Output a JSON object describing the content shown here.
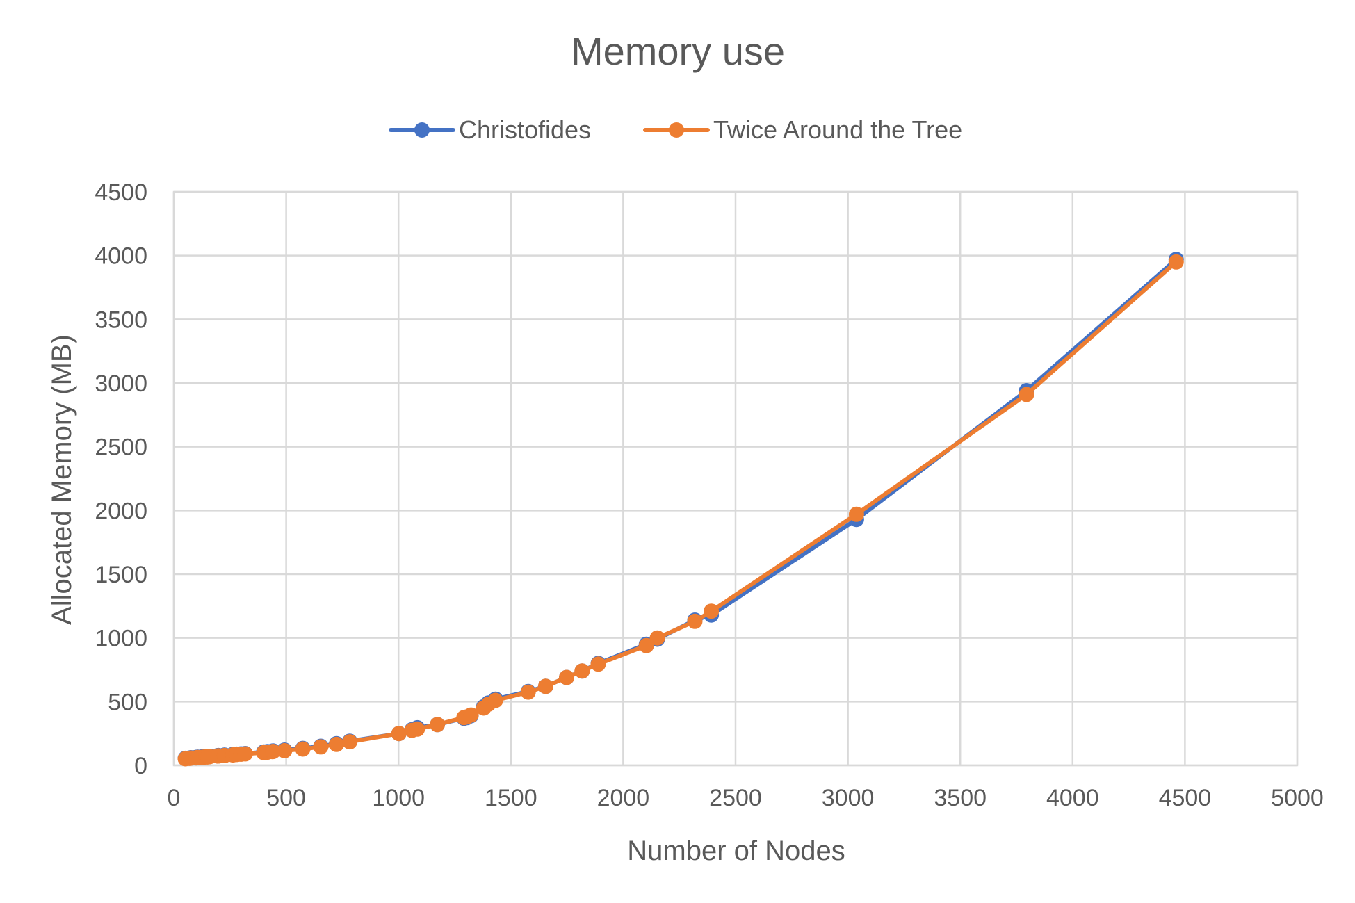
{
  "chart_data": {
    "type": "line",
    "title": "Memory use",
    "xlabel": "Number of Nodes",
    "ylabel": "Allocated Memory (MB)",
    "xlim": [
      0,
      5000
    ],
    "ylim": [
      0,
      4500
    ],
    "xticks": [
      0,
      500,
      1000,
      1500,
      2000,
      2500,
      3000,
      3500,
      4000,
      4500,
      5000
    ],
    "yticks": [
      0,
      500,
      1000,
      1500,
      2000,
      2500,
      3000,
      3500,
      4000,
      4500
    ],
    "grid": true,
    "legend_position": "top",
    "series": [
      {
        "name": "Christofides",
        "color": "#4472C4",
        "x": [
          51,
          70,
          76,
          99,
          101,
          105,
          107,
          124,
          130,
          136,
          144,
          150,
          152,
          159,
          195,
          198,
          200,
          225,
          226,
          262,
          264,
          280,
          299,
          318,
          400,
          417,
          439,
          442,
          493,
          574,
          654,
          724,
          783,
          1002,
          1060,
          1084,
          1173,
          1291,
          1304,
          1323,
          1379,
          1400,
          1432,
          1577,
          1655,
          1748,
          1817,
          1889,
          2103,
          2152,
          2319,
          2392,
          3038,
          3795,
          4461
        ],
        "y": [
          55,
          58,
          60,
          62,
          63,
          64,
          64,
          66,
          67,
          68,
          69,
          70,
          70,
          71,
          76,
          77,
          77,
          80,
          80,
          85,
          85,
          88,
          90,
          93,
          105,
          108,
          112,
          113,
          120,
          133,
          150,
          170,
          190,
          250,
          280,
          295,
          320,
          370,
          375,
          390,
          460,
          490,
          520,
          580,
          620,
          690,
          740,
          800,
          950,
          990,
          1140,
          1180,
          1930,
          2940,
          3970
        ]
      },
      {
        "name": "Twice Around the Tree",
        "color": "#ED7D31",
        "x": [
          51,
          70,
          76,
          99,
          101,
          105,
          107,
          124,
          130,
          136,
          144,
          150,
          152,
          159,
          195,
          198,
          200,
          225,
          226,
          262,
          264,
          280,
          299,
          318,
          400,
          417,
          439,
          442,
          493,
          574,
          654,
          724,
          783,
          1002,
          1060,
          1084,
          1173,
          1291,
          1304,
          1323,
          1379,
          1400,
          1432,
          1577,
          1655,
          1748,
          1817,
          1889,
          2103,
          2152,
          2319,
          2392,
          3038,
          3795,
          4461
        ],
        "y": [
          52,
          55,
          57,
          59,
          60,
          61,
          61,
          63,
          64,
          65,
          66,
          67,
          67,
          68,
          73,
          74,
          74,
          77,
          77,
          82,
          82,
          85,
          87,
          90,
          100,
          103,
          108,
          109,
          115,
          128,
          145,
          165,
          185,
          250,
          275,
          285,
          320,
          375,
          380,
          395,
          450,
          480,
          510,
          575,
          620,
          690,
          740,
          795,
          940,
          1000,
          1130,
          1210,
          1970,
          2910,
          3950
        ]
      }
    ]
  }
}
